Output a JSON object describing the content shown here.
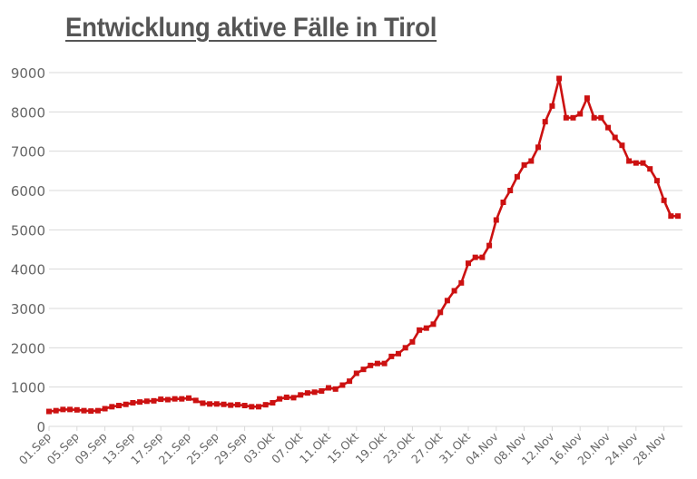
{
  "title": "Entwicklung aktive Fälle in Tirol",
  "colors": {
    "line": "#cc1111",
    "grid": "#d9d9d9",
    "text": "#666666",
    "title": "#555555"
  },
  "chart_data": {
    "type": "line",
    "title": "Entwicklung aktive Fälle in Tirol",
    "xlabel": "",
    "ylabel": "",
    "ylim": [
      0,
      9000
    ],
    "yticks": [
      0,
      1000,
      2000,
      3000,
      4000,
      5000,
      6000,
      7000,
      8000,
      9000
    ],
    "grid": true,
    "legend": null,
    "x_tick_labels": [
      "01.Sep",
      "05.Sep",
      "09.Sep",
      "13.Sep",
      "17.Sep",
      "21.Sep",
      "25.Sep",
      "29.Sep",
      "03.Okt",
      "07.Okt",
      "11.Okt",
      "15.Okt",
      "19.Okt",
      "23.Okt",
      "27.Okt",
      "31.Okt",
      "04.Nov",
      "08.Nov",
      "12.Nov",
      "16.Nov",
      "20.Nov",
      "24.Nov",
      "28.Nov"
    ],
    "x_start": "01.Sep",
    "x_end": "30.Nov",
    "series": [
      {
        "name": "Aktive Fälle",
        "values": [
          380,
          400,
          430,
          430,
          420,
          400,
          390,
          400,
          450,
          500,
          530,
          560,
          600,
          620,
          640,
          650,
          690,
          680,
          700,
          700,
          720,
          660,
          590,
          570,
          570,
          560,
          540,
          550,
          530,
          500,
          500,
          550,
          600,
          700,
          740,
          730,
          800,
          850,
          870,
          900,
          980,
          950,
          1050,
          1150,
          1350,
          1450,
          1550,
          1600,
          1600,
          1780,
          1850,
          2000,
          2150,
          2450,
          2500,
          2600,
          2900,
          3200,
          3450,
          3650,
          4150,
          4300,
          4300,
          4600,
          5250,
          5700,
          6000,
          6350,
          6650,
          6750,
          7100,
          7750,
          8150,
          8850,
          7850,
          7850,
          7950,
          8350,
          7850,
          7850,
          7600,
          7350,
          7150,
          6750,
          6700,
          6700,
          6550,
          6250,
          5750,
          5350,
          5350
        ]
      }
    ]
  }
}
